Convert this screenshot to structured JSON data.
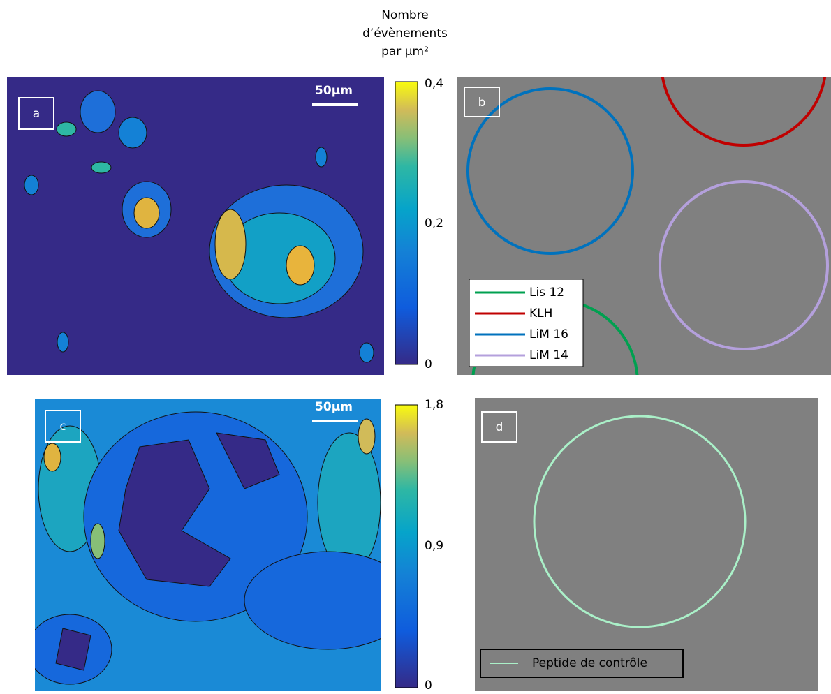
{
  "colorbar_title": [
    "Nombre",
    "d’évènements",
    "par µm²"
  ],
  "panels": [
    {
      "label": "a",
      "scale_bar": "50µm",
      "colorbar_ticks": [
        "0,4",
        "0,2",
        "0"
      ]
    },
    {
      "label": "b",
      "legend": [
        "Lis 12",
        "KLH",
        "LiM 16",
        "LiM 14"
      ]
    },
    {
      "label": "c",
      "scale_bar": "50µm",
      "colorbar_ticks": [
        "1,8",
        "0,9",
        "0"
      ]
    },
    {
      "label": "d",
      "legend": [
        "Peptide de contrôle"
      ]
    }
  ]
}
